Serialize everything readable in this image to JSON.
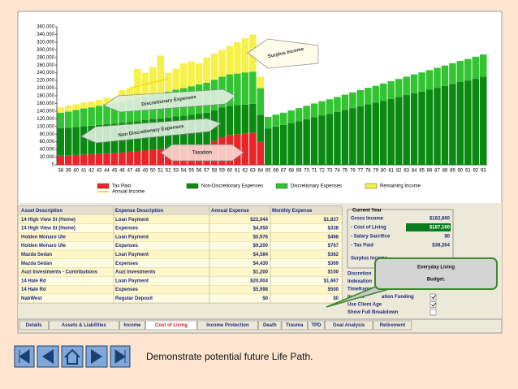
{
  "chart_data": {
    "type": "bar",
    "categories": [
      38,
      39,
      40,
      41,
      42,
      43,
      44,
      45,
      46,
      47,
      48,
      49,
      50,
      51,
      52,
      53,
      54,
      55,
      56,
      57,
      58,
      59,
      60,
      61,
      62,
      63,
      64,
      65,
      66,
      67,
      68,
      69,
      70,
      71,
      72,
      73,
      74,
      75,
      76,
      77,
      78,
      79,
      80,
      81,
      82,
      83,
      84,
      85,
      86,
      87,
      88,
      89,
      90,
      91,
      92,
      93
    ],
    "series": [
      {
        "name": "Tax Paid",
        "color": "#e8262a",
        "values": [
          24000,
          25000,
          26000,
          27000,
          28000,
          29000,
          30000,
          31000,
          32000,
          34000,
          36000,
          38000,
          40000,
          41000,
          42000,
          44000,
          46000,
          48000,
          50000,
          52000,
          62000,
          72000,
          78000,
          80000,
          82000,
          84000,
          60000,
          null,
          null,
          null,
          null,
          null,
          null,
          null,
          null,
          null,
          null,
          null,
          null,
          null,
          null,
          null,
          null,
          null,
          null,
          null,
          null,
          null,
          null,
          null,
          null,
          null,
          null,
          null,
          null,
          null
        ]
      },
      {
        "name": "Non-Discretionary Expenses",
        "color": "#0b8a12",
        "values": [
          72000,
          72000,
          73000,
          74000,
          74000,
          75000,
          76000,
          76000,
          77000,
          78000,
          78000,
          79000,
          80000,
          80000,
          81000,
          82000,
          82000,
          83000,
          84000,
          84000,
          80000,
          78000,
          76000,
          76000,
          75000,
          75000,
          70000,
          95000,
          100000,
          104000,
          109000,
          114000,
          119000,
          124000,
          129000,
          133000,
          138000,
          143000,
          148000,
          153000,
          158000,
          162000,
          167000,
          172000,
          177000,
          182000,
          187000,
          191000,
          196000,
          201000,
          206000,
          211000,
          216000,
          220000,
          225000,
          230000
        ]
      },
      {
        "name": "Discretionary Expenses",
        "color": "#33c433",
        "values": [
          40000,
          42000,
          44000,
          46000,
          48000,
          50000,
          52000,
          54000,
          56000,
          58000,
          60000,
          62000,
          64000,
          66000,
          68000,
          70000,
          72000,
          74000,
          76000,
          78000,
          80000,
          80000,
          82000,
          82000,
          84000,
          84000,
          70000,
          30000,
          31000,
          32000,
          33000,
          34000,
          35000,
          36000,
          37000,
          38000,
          39000,
          40000,
          41000,
          42000,
          43000,
          44000,
          45000,
          46000,
          47000,
          48000,
          49000,
          50000,
          51000,
          52000,
          53000,
          54000,
          55000,
          56000,
          57000,
          58000
        ]
      },
      {
        "name": "Remaining Income",
        "color": "#f6f04a",
        "values": [
          14000,
          16000,
          15000,
          15000,
          15000,
          16000,
          17000,
          14000,
          30000,
          30000,
          76000,
          61000,
          71000,
          98000,
          49000,
          54000,
          65000,
          65000,
          55000,
          66000,
          68000,
          70000,
          74000,
          82000,
          89000,
          97000,
          30000,
          null,
          null,
          null,
          null,
          null,
          null,
          null,
          null,
          null,
          null,
          null,
          null,
          null,
          null,
          null,
          null,
          null,
          null,
          null,
          null,
          null,
          null,
          null,
          null,
          null,
          null,
          null,
          null,
          null
        ]
      }
    ],
    "lines": [
      {
        "name": "Annual Income",
        "color": "#f0e21e",
        "values": [
          null,
          null,
          null,
          null,
          null,
          null,
          null,
          null,
          null,
          200000,
          205000,
          210000,
          215000,
          220000,
          225000,
          null,
          null,
          null,
          null,
          null,
          null,
          null,
          null,
          null,
          null,
          null,
          null,
          null,
          null,
          null,
          null,
          null,
          null,
          null,
          null,
          null,
          null,
          null,
          null,
          null,
          null,
          null,
          null,
          null,
          null,
          null,
          null,
          null,
          null,
          null,
          null,
          null,
          null,
          null,
          null,
          null
        ]
      }
    ],
    "ylim": [
      0,
      360000
    ],
    "yticks": [
      0,
      {
        "value": 20000,
        "label": "20,000"
      },
      {
        "value": 40000,
        "label": "40,000"
      },
      {
        "value": 60000,
        "label": "60,000"
      },
      {
        "value": 80000,
        "label": "80,000"
      },
      {
        "value": 100000,
        "label": "100,000"
      },
      {
        "value": 120000,
        "label": "120,000"
      },
      {
        "value": 140000,
        "label": "140,000"
      },
      {
        "value": 160000,
        "label": "160,000"
      },
      {
        "value": 180000,
        "label": "180,000"
      },
      {
        "value": 200000,
        "label": "200,000"
      },
      {
        "value": 220000,
        "label": "220,000"
      },
      {
        "value": 240000,
        "label": "240,000"
      },
      {
        "value": 260000,
        "label": "260,000"
      },
      {
        "value": 280000,
        "label": "280,000"
      },
      {
        "value": 300000,
        "label": "300,000"
      },
      {
        "value": 320000,
        "label": "320,000"
      },
      {
        "value": 340000,
        "label": "340,000"
      },
      {
        "value": 360000,
        "label": "360,000"
      }
    ],
    "grid": false,
    "annotations": [
      "Surplus Income",
      "Discretionary Expenses",
      "Non Discretionary Expenses",
      "Taxation"
    ]
  },
  "table": {
    "columns": [
      "Asset Description",
      "Expense Description",
      "Annual Expense",
      "Monthly Expense"
    ],
    "rows": [
      [
        "14 High View St (Home)",
        "Loan Payment",
        "$22,044",
        "$1,837"
      ],
      [
        "14 High View St (Home)",
        "Expenses",
        "$4,050",
        "$338"
      ],
      [
        "Holden Monaro Ute",
        "Loan Payment",
        "$5,976",
        "$498"
      ],
      [
        "Holden Monaro Ute",
        "Expenses",
        "$9,200",
        "$767"
      ],
      [
        "Mazda Sedan",
        "Loan Payment",
        "$4,584",
        "$382"
      ],
      [
        "Mazda Sedan",
        "Expenses",
        "$4,430",
        "$369"
      ],
      [
        "Auzi Investments - Contributions",
        "Auzi Investments",
        "$1,200",
        "$100"
      ],
      [
        "14 Hale Rd",
        "Loan Payment",
        "$20,004",
        "$1,667"
      ],
      [
        "14 Hale Rd",
        "Expenses",
        "$5,998",
        "$500"
      ],
      [
        "NabWest",
        "Regular Deposit",
        "$0",
        "$0"
      ]
    ]
  },
  "panel": {
    "title": "Current Year",
    "rows": [
      [
        "Gross Income",
        "$162,860"
      ],
      [
        "- Cost of Living",
        "$187,160"
      ],
      [
        "- Salary Sacrifice",
        "$0"
      ],
      [
        "- Tax Paid",
        "$38,264"
      ]
    ],
    "surplus": "Surplus Income",
    "options": [
      "Discretion",
      "Indexation",
      "Timeframe",
      "Include",
      "Use Client Age",
      "Show Full Breakdown"
    ],
    "option_tail": "ation Funding"
  },
  "callout": {
    "lines": [
      "Everyday Living",
      "Budget."
    ]
  },
  "tabs": [
    "Details",
    "Assets & Liabilities",
    "Income",
    "Cost of Living",
    "Income Protection",
    "Death",
    "Trauma",
    "TPD",
    "Goal Analysis",
    "Retirement"
  ],
  "caption": "Demonstrate potential future Life Path."
}
